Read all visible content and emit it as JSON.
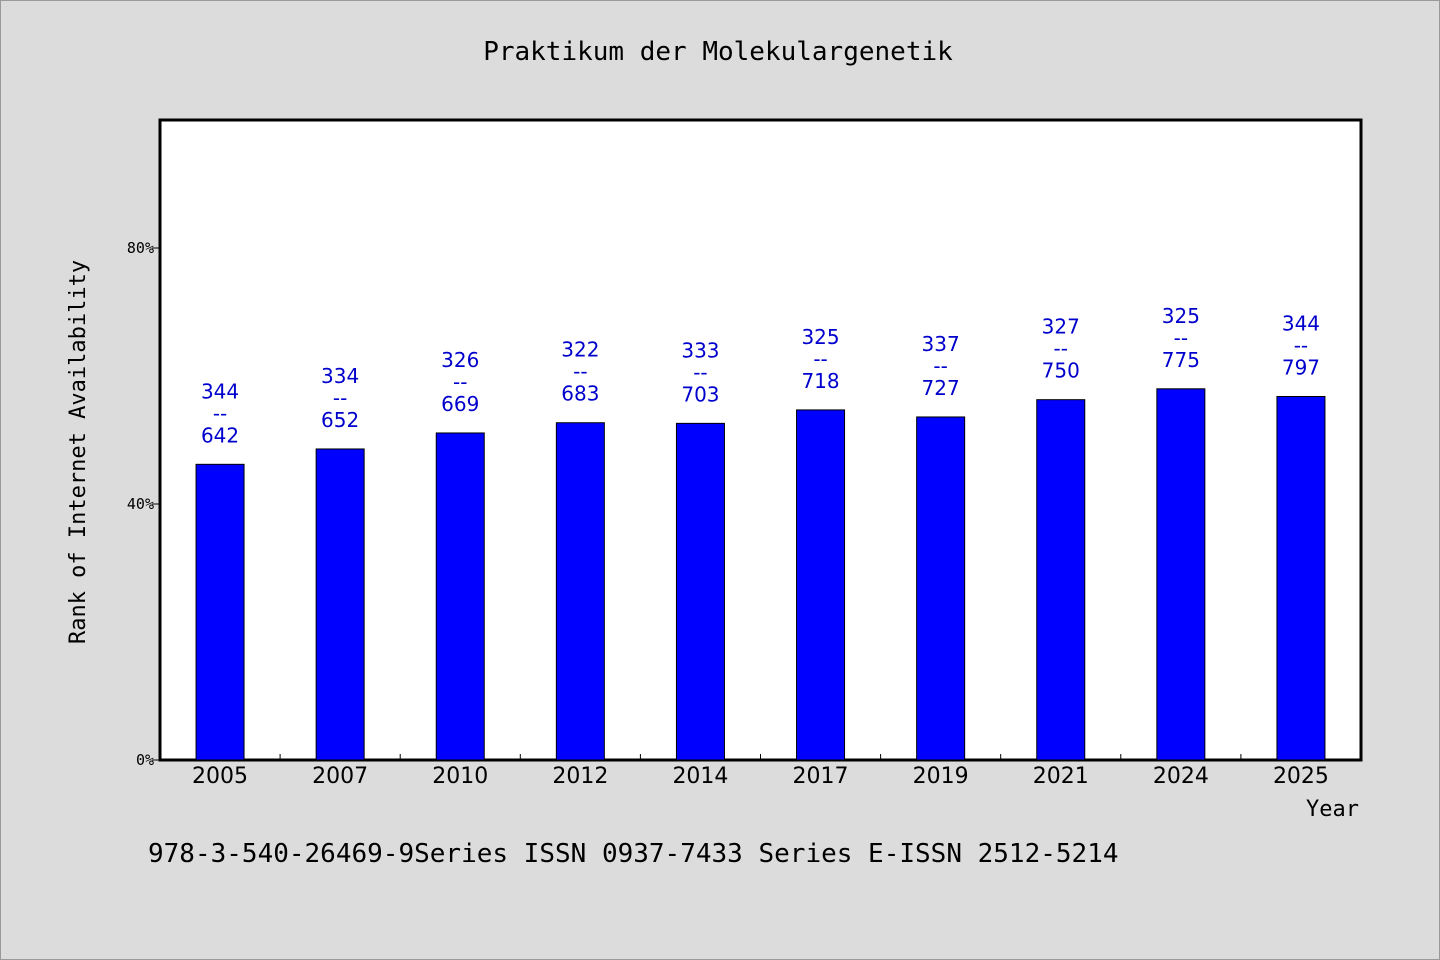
{
  "chart_data": {
    "type": "bar",
    "title": "Praktikum der Molekulargenetik",
    "xlabel": "Year",
    "ylabel": "Rank of Internet Availability",
    "categories": [
      "2005",
      "2007",
      "2010",
      "2012",
      "2014",
      "2017",
      "2019",
      "2021",
      "2024",
      "2025"
    ],
    "values": [
      46.2,
      48.6,
      51.1,
      52.7,
      52.6,
      54.7,
      53.6,
      56.3,
      58.0,
      56.8
    ],
    "data_labels": [
      [
        "344",
        "--",
        "642"
      ],
      [
        "334",
        "--",
        "652"
      ],
      [
        "326",
        "--",
        "669"
      ],
      [
        "322",
        "--",
        "683"
      ],
      [
        "333",
        "--",
        "703"
      ],
      [
        "325",
        "--",
        "718"
      ],
      [
        "337",
        "--",
        "727"
      ],
      [
        "327",
        "--",
        "750"
      ],
      [
        "325",
        "--",
        "775"
      ],
      [
        "344",
        "--",
        "797"
      ]
    ],
    "ylim": [
      0,
      100
    ],
    "yticks": [
      0,
      40,
      80
    ],
    "ytick_labels": [
      "0%",
      "40%",
      "80%"
    ],
    "grid": false,
    "legend": "none",
    "bar_color": "#0000ff",
    "label_color": "#0000cc"
  },
  "footer_text": "978-3-540-26469-9Series ISSN 0937-7433 Series E-ISSN 2512-5214"
}
